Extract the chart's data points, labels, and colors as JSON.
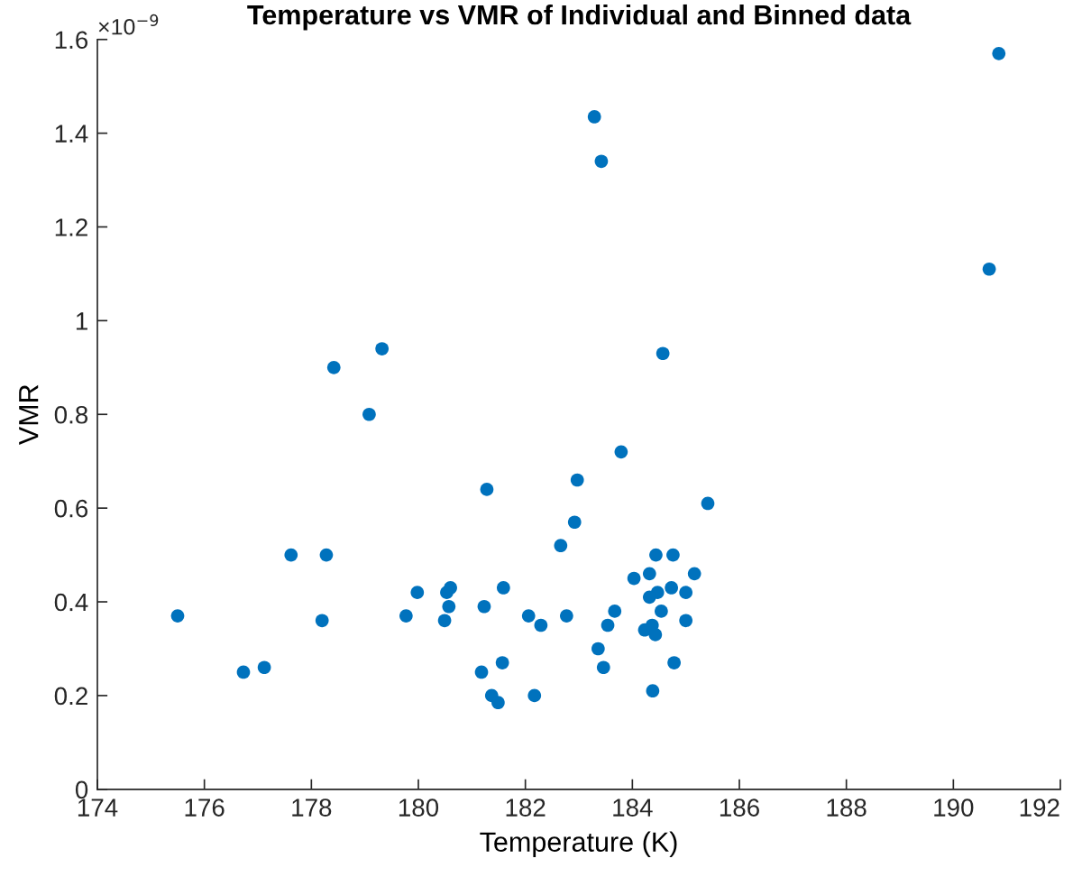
{
  "chart_data": {
    "type": "scatter",
    "title": "Temperature vs VMR of Individual and Binned data",
    "xlabel": "Temperature (K)",
    "ylabel": "VMR",
    "annotations": [
      "×10$^{−9}$"
    ],
    "marker": "circle",
    "grid": false,
    "xlim": [
      174,
      192
    ],
    "xticks": [
      174,
      176,
      178,
      180,
      182,
      184,
      186,
      188,
      190,
      192
    ],
    "ylim": [
      0,
      1.6
    ],
    "yticks": [
      0,
      0.2,
      0.4,
      0.6,
      0.8,
      1,
      1.2,
      1.4,
      1.6
    ],
    "series": [
      {
        "color": "#0072bd",
        "x": [
          175.5,
          176.73,
          177.12,
          177.62,
          178.28,
          178.2,
          178.42,
          179.32,
          179.08,
          179.77,
          179.98,
          180.49,
          180.57,
          180.53,
          180.6,
          181.23,
          181.28,
          181.59,
          181.18,
          181.57,
          181.37,
          181.49,
          182.06,
          182.17,
          183.79,
          182.97,
          182.92,
          182.66,
          185.41,
          182.29,
          182.77,
          183.36,
          183.46,
          183.54,
          183.67,
          184.03,
          184.32,
          184.4,
          184.44,
          184.76,
          185.16,
          185.0,
          184.73,
          184.47,
          184.32,
          184.54,
          185.0,
          184.23,
          184.37,
          184.43,
          184.78,
          184.38,
          184.57,
          183.29,
          183.42,
          190.85,
          190.67
        ],
        "values": [
          0.37,
          0.25,
          0.26,
          0.5,
          0.5,
          0.36,
          0.9,
          0.94,
          0.8,
          0.37,
          0.42,
          0.36,
          0.39,
          0.42,
          0.43,
          0.39,
          0.64,
          0.43,
          0.25,
          0.27,
          0.2,
          0.185,
          0.37,
          0.2,
          0.72,
          0.66,
          0.57,
          0.52,
          0.61,
          0.35,
          0.37,
          0.3,
          0.26,
          0.35,
          0.38,
          0.45,
          0.46,
          null,
          0.5,
          0.5,
          0.46,
          0.42,
          0.43,
          0.42,
          0.41,
          0.38,
          0.36,
          0.34,
          0.35,
          0.33,
          0.27,
          0.21,
          0.93,
          1.435,
          1.34,
          1.57,
          1.11
        ]
      }
    ]
  }
}
